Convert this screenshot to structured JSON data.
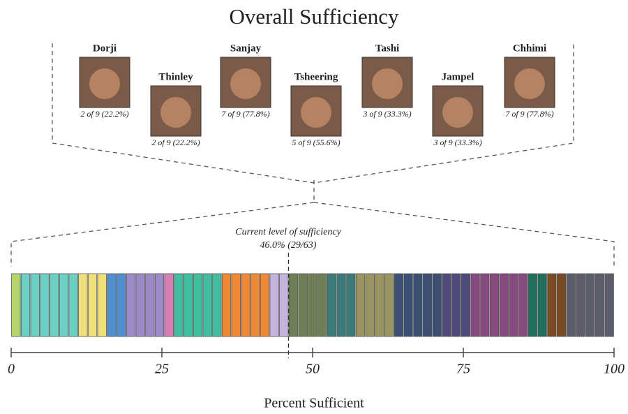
{
  "chart_data": {
    "type": "segments",
    "title": "Overall Sufficiency",
    "xlabel": "Percent Sufficient",
    "xlim": [
      0,
      100
    ],
    "xticks": [
      0,
      25,
      50,
      75,
      100
    ],
    "people": [
      {
        "name": "Dorji",
        "label": "2 of 9 (22.2%)"
      },
      {
        "name": "Thinley",
        "label": "2 of 9 (22.2%)"
      },
      {
        "name": "Sanjay",
        "label": "7 of 9 (77.8%)"
      },
      {
        "name": "Tsheering",
        "label": "5 of 9 (55.6%)"
      },
      {
        "name": "Tashi",
        "label": "3 of 9 (33.3%)"
      },
      {
        "name": "Jampel",
        "label": "3 of 9 (33.3%)"
      },
      {
        "name": "Chhimi",
        "label": "7 of 9 (77.8%)"
      }
    ],
    "current": {
      "caption": "Current level of sufficiency",
      "value": 46.0,
      "label": "46.0% (29/63)"
    },
    "segments": [
      {
        "color": "#b5d46a",
        "count": 1
      },
      {
        "color": "#6ccfc4",
        "count": 6
      },
      {
        "color": "#efe07a",
        "count": 3
      },
      {
        "color": "#4f8fd0",
        "count": 2
      },
      {
        "color": "#9b89c8",
        "count": 4
      },
      {
        "color": "#d77fb4",
        "count": 1
      },
      {
        "color": "#3fbf9f",
        "count": 5
      },
      {
        "color": "#ee8a35",
        "count": 5
      },
      {
        "color": "#c3b3dd",
        "count": 2
      },
      {
        "color": "#6e7f55",
        "count": 4
      },
      {
        "color": "#3b7a78",
        "count": 3
      },
      {
        "color": "#9a9560",
        "count": 4
      },
      {
        "color": "#3a4f72",
        "count": 5
      },
      {
        "color": "#4f4a7a",
        "count": 3
      },
      {
        "color": "#874a7e",
        "count": 6
      },
      {
        "color": "#1f6f5c",
        "count": 2
      },
      {
        "color": "#7a4a22",
        "count": 2
      },
      {
        "color": "#5d5c6a",
        "count": 5
      }
    ]
  }
}
